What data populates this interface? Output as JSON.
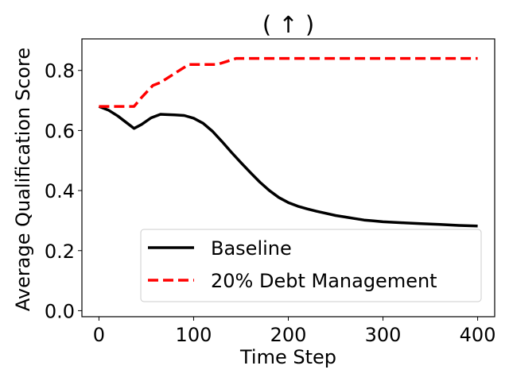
{
  "chart_data": {
    "type": "line",
    "title": "( ↑ )",
    "xlabel": "Time Step",
    "ylabel": "Average Qualification Score",
    "xlim": [
      -18,
      418
    ],
    "ylim": [
      -0.02,
      0.905
    ],
    "xticks": [
      0,
      100,
      200,
      300,
      400
    ],
    "yticks": [
      0.0,
      0.2,
      0.4,
      0.6,
      0.8
    ],
    "xtick_labels": [
      "0",
      "100",
      "200",
      "300",
      "400"
    ],
    "ytick_labels": [
      "0.0",
      "0.2",
      "0.4",
      "0.6",
      "0.8"
    ],
    "grid": false,
    "legend_position": "lower-right",
    "series": [
      {
        "name": "Baseline",
        "color": "#000000",
        "dash": "solid",
        "x": [
          0,
          10,
          20,
          30,
          37,
          45,
          55,
          65,
          72,
          80,
          90,
          100,
          110,
          120,
          130,
          140,
          150,
          160,
          170,
          180,
          190,
          200,
          210,
          220,
          230,
          240,
          250,
          260,
          270,
          280,
          290,
          300,
          320,
          340,
          360,
          380,
          400
        ],
        "values": [
          0.68,
          0.668,
          0.648,
          0.624,
          0.607,
          0.62,
          0.642,
          0.654,
          0.653,
          0.652,
          0.65,
          0.641,
          0.624,
          0.597,
          0.563,
          0.527,
          0.493,
          0.46,
          0.428,
          0.4,
          0.377,
          0.36,
          0.348,
          0.339,
          0.331,
          0.324,
          0.317,
          0.312,
          0.307,
          0.302,
          0.299,
          0.296,
          0.293,
          0.29,
          0.287,
          0.284,
          0.282
        ]
      },
      {
        "name": "20% Debt Management",
        "color": "#ff0000",
        "dash": "dashed",
        "x": [
          0,
          10,
          20,
          30,
          37,
          45,
          57,
          65,
          75,
          85,
          95,
          105,
          115,
          125,
          135,
          145,
          200,
          250,
          300,
          350,
          400
        ],
        "values": [
          0.68,
          0.68,
          0.68,
          0.68,
          0.68,
          0.71,
          0.75,
          0.76,
          0.78,
          0.8,
          0.82,
          0.82,
          0.82,
          0.82,
          0.83,
          0.84,
          0.84,
          0.84,
          0.84,
          0.84,
          0.84
        ]
      }
    ]
  }
}
